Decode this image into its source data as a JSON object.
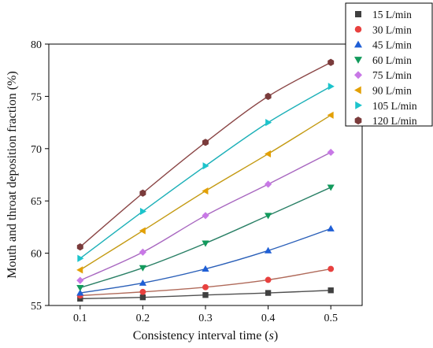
{
  "chart_data": {
    "type": "scatter",
    "xlabel_main": "Consistency interval time (",
    "xlabel_var": "s",
    "xlabel_close": ")",
    "ylabel": "Mouth and throat deposition fraction (%)",
    "xlim": [
      0.05,
      0.55
    ],
    "ylim": [
      55,
      80
    ],
    "x_ticks": [
      0.1,
      0.2,
      0.3,
      0.4,
      0.5
    ],
    "x_tick_labels": [
      "0.1",
      "0.2",
      "0.3",
      "0.4",
      "0.5"
    ],
    "y_ticks": [
      55,
      60,
      65,
      70,
      75,
      80
    ],
    "y_tick_labels": [
      "55",
      "60",
      "65",
      "70",
      "75",
      "80"
    ],
    "grid": false,
    "legend_position": "top-right",
    "x": [
      0.1,
      0.2,
      0.3,
      0.4,
      0.5
    ],
    "series": [
      {
        "name": "15 L/min",
        "values": [
          55.65,
          55.78,
          56.0,
          56.2,
          56.45
        ],
        "color": "#404040",
        "line_color": "#505050",
        "marker": "square"
      },
      {
        "name": "30 L/min",
        "values": [
          55.95,
          56.3,
          56.75,
          57.45,
          58.5
        ],
        "color": "#e8413f",
        "line_color": "#b06a5a",
        "marker": "circle"
      },
      {
        "name": "45 L/min",
        "values": [
          56.2,
          57.15,
          58.5,
          60.25,
          62.35
        ],
        "color": "#1f5fd6",
        "line_color": "#2a5fb8",
        "marker": "triangle-up"
      },
      {
        "name": "60 L/min",
        "values": [
          56.7,
          58.6,
          60.95,
          63.6,
          66.3
        ],
        "color": "#129a5c",
        "line_color": "#2a8066",
        "marker": "triangle-down"
      },
      {
        "name": "75 L/min",
        "values": [
          57.4,
          60.1,
          63.6,
          66.6,
          69.65
        ],
        "color": "#c878e6",
        "line_color": "#a867c0",
        "marker": "diamond"
      },
      {
        "name": "90 L/min",
        "values": [
          58.4,
          62.15,
          65.95,
          69.5,
          73.2
        ],
        "color": "#e3a006",
        "line_color": "#c49a12",
        "marker": "triangle-left"
      },
      {
        "name": "105 L/min",
        "values": [
          59.5,
          64.0,
          68.35,
          72.5,
          75.95
        ],
        "color": "#1cc4cc",
        "line_color": "#1cb0b8",
        "marker": "triangle-right"
      },
      {
        "name": "120 L/min",
        "values": [
          60.6,
          65.75,
          70.6,
          75.0,
          78.25
        ],
        "color": "#7a3b3b",
        "line_color": "#8a4545",
        "marker": "hexagon"
      }
    ]
  }
}
